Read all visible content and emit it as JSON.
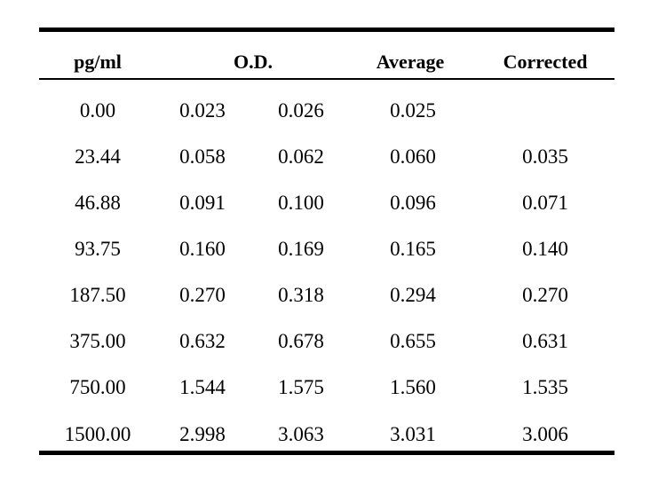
{
  "headers": {
    "pgml": "pg/ml",
    "od": "O.D.",
    "average": "Average",
    "corrected": "Corrected"
  },
  "rows": [
    {
      "pgml": "0.00",
      "od1": "0.023",
      "od2": "0.026",
      "average": "0.025",
      "corrected": ""
    },
    {
      "pgml": "23.44",
      "od1": "0.058",
      "od2": "0.062",
      "average": "0.060",
      "corrected": "0.035"
    },
    {
      "pgml": "46.88",
      "od1": "0.091",
      "od2": "0.100",
      "average": "0.096",
      "corrected": "0.071"
    },
    {
      "pgml": "93.75",
      "od1": "0.160",
      "od2": "0.169",
      "average": "0.165",
      "corrected": "0.140"
    },
    {
      "pgml": "187.50",
      "od1": "0.270",
      "od2": "0.318",
      "average": "0.294",
      "corrected": "0.270"
    },
    {
      "pgml": "375.00",
      "od1": "0.632",
      "od2": "0.678",
      "average": "0.655",
      "corrected": "0.631"
    },
    {
      "pgml": "750.00",
      "od1": "1.544",
      "od2": "1.575",
      "average": "1.560",
      "corrected": "1.535"
    },
    {
      "pgml": "1500.00",
      "od1": "2.998",
      "od2": "3.063",
      "average": "3.031",
      "corrected": "3.006"
    }
  ]
}
